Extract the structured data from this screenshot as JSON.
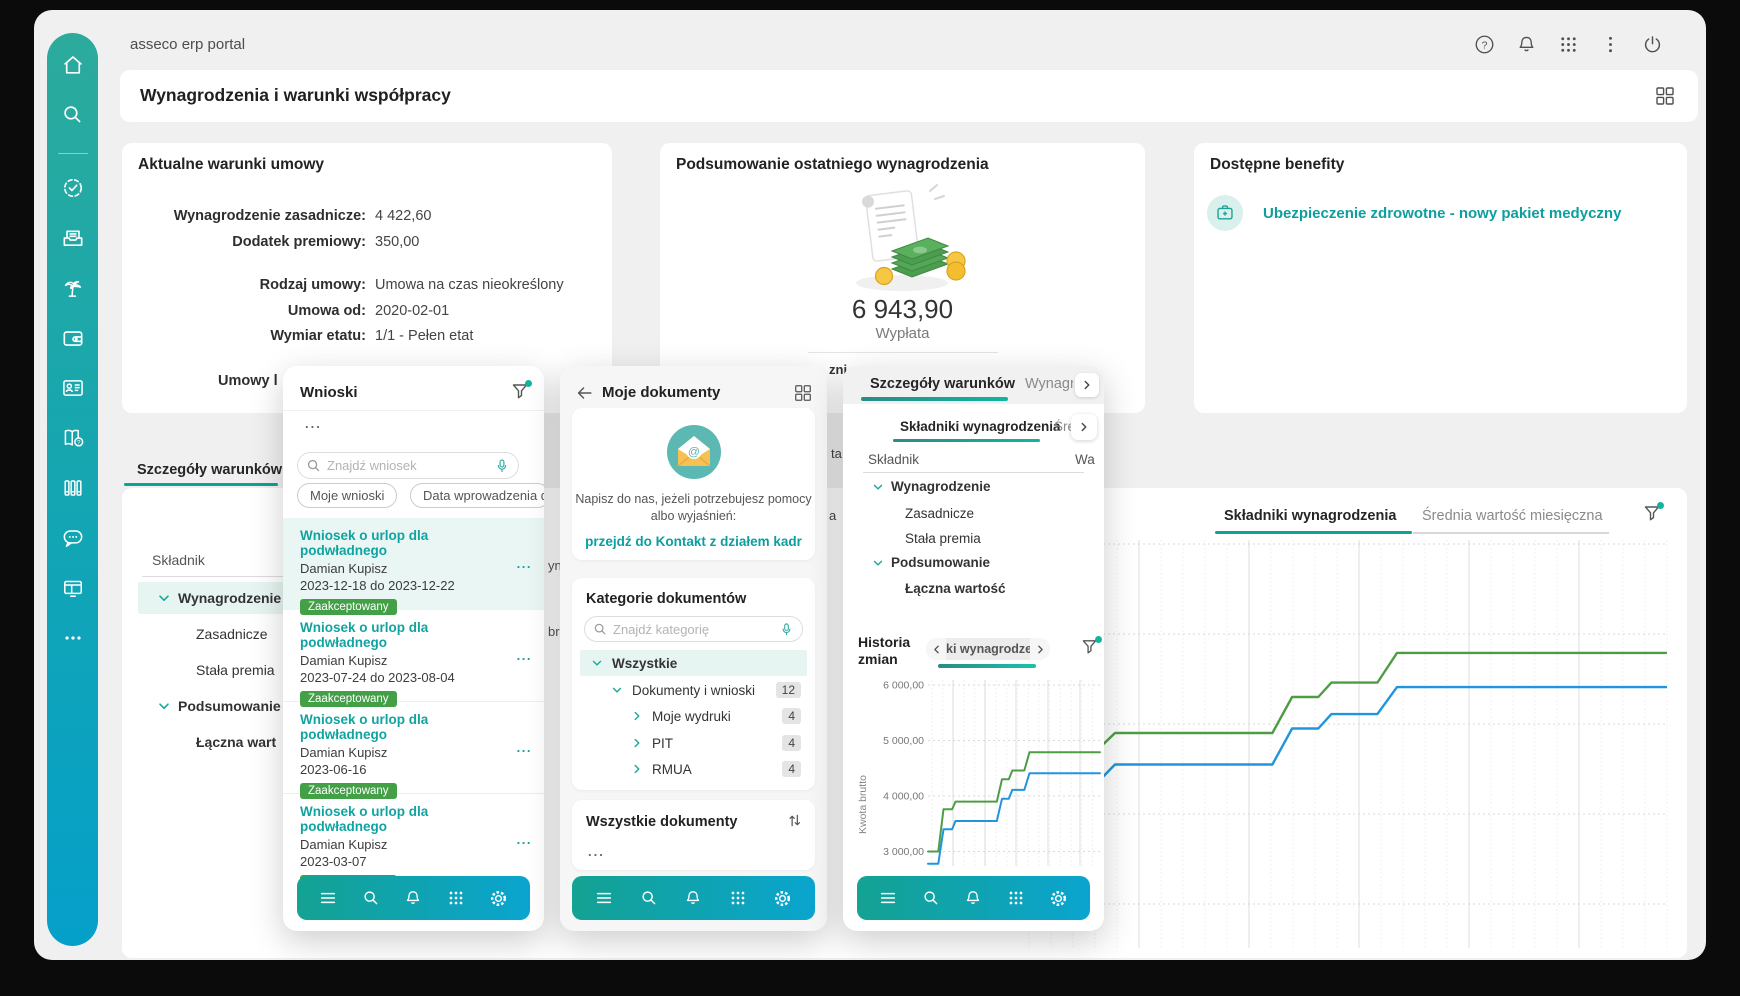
{
  "app": {
    "title": "asseco erp portal",
    "page_title": "Wynagrodzenia i warunki współpracy"
  },
  "topbar": {
    "icons": [
      "help-icon",
      "notifications-icon",
      "apps-grid-icon",
      "more-vertical-icon",
      "power-icon"
    ]
  },
  "sidebar": {
    "icons": [
      "home",
      "search",
      "tasks-check",
      "documents-inbox",
      "vacation-palm",
      "wallet",
      "employee-card",
      "guide-book",
      "library",
      "chat",
      "workstation",
      "more"
    ]
  },
  "contract_card": {
    "title": "Aktualne warunki umowy",
    "fields": [
      {
        "label": "Wynagrodzenie zasadnicze:",
        "value": "4 422,60"
      },
      {
        "label": "Dodatek premiowy:",
        "value": "350,00"
      },
      {
        "label": "Rodzaj umowy:",
        "value": "Umowa na czas nieokreślony"
      },
      {
        "label": "Umowa od:",
        "value": "2020-02-01"
      },
      {
        "label": "Wymiar etatu:",
        "value": "1/1 - Pełen etat"
      }
    ],
    "truncated_label": "Umowy l"
  },
  "salary_card": {
    "title": "Podsumowanie ostatniego wynagrodzenia",
    "amount": "6 943,90",
    "caption": "Wypłata"
  },
  "benefits_card": {
    "title": "Dostępne benefity",
    "link": "Ubezpieczenie zdrowotne - nowy pakiet medyczny"
  },
  "details_section": {
    "tab": "Szczegóły warunków",
    "header": "Składnik",
    "rows": [
      "Wynagrodzenie",
      "Zasadnicze",
      "Stała premia",
      "Podsumowanie",
      "Łączna wart"
    ]
  },
  "main_chart_tabs": {
    "active": "Składniki wynagrodzenia",
    "inactive": "Średnia wartość miesięczna"
  },
  "wnioski": {
    "title": "Wnioski",
    "ellipsis": "...",
    "kebab": "...",
    "search_placeholder": "Znajdź wniosek",
    "chips": [
      "Moje wnioski",
      "Data wprowadzenia d"
    ],
    "items": [
      {
        "title": "Wniosek o urlop dla podwładnego",
        "person": "Damian Kupisz",
        "dates": "2023-12-18 do 2023-12-22",
        "status": "Zaakceptowany"
      },
      {
        "title": "Wniosek o urlop dla podwładnego",
        "person": "Damian Kupisz",
        "dates": "2023-07-24 do 2023-08-04",
        "status": "Zaakceptowany"
      },
      {
        "title": "Wniosek o urlop dla podwładnego",
        "person": "Damian Kupisz",
        "dates": "2023-06-16",
        "status": "Zaakceptowany"
      },
      {
        "title": "Wniosek o urlop dla podwładnego",
        "person": "Damian Kupisz",
        "dates": "2023-03-07",
        "status": "Zaakceptowany"
      }
    ]
  },
  "dokumenty": {
    "title": "Moje dokumenty",
    "help": {
      "line1": "Napisz do nas, jeżeli potrzebujesz pomocy",
      "line2": "albo wyjaśnień:",
      "link": "przejdź do Kontakt z działem kadr"
    },
    "categories": {
      "title": "Kategorie dokumentów",
      "search_placeholder": "Znajdź kategorię",
      "items": [
        {
          "label": "Wszystkie",
          "count": ""
        },
        {
          "label": "Dokumenty i wnioski",
          "count": "12"
        },
        {
          "label": "Moje wydruki",
          "count": "4"
        },
        {
          "label": "PIT",
          "count": "4"
        },
        {
          "label": "RMUA",
          "count": "4"
        }
      ]
    },
    "all_docs": {
      "title": "Wszystkie dokumenty",
      "ellipsis": "..."
    }
  },
  "warunki": {
    "tab_active": "Szczegóły warunków",
    "tab_more": "Wynagrod",
    "inner_tab_active": "Składniki wynagrodzenia",
    "inner_tab_more": "Śre",
    "col1": "Składnik",
    "col2": "Wa",
    "rows": [
      "Wynagrodzenie",
      "Zasadnicze",
      "Stała premia",
      "Podsumowanie",
      "Łączna wartość"
    ],
    "history": {
      "title1": "Historia",
      "title2": "zmian",
      "selector": "ki wynagrodzeni"
    }
  },
  "fragments": {
    "f1": "zni",
    "f2": "ta",
    "f3": "a",
    "f4": "yn",
    "f5": "br"
  },
  "panel_toolbar": {
    "icons": [
      "menu",
      "search",
      "notifications",
      "apps-grid",
      "settings"
    ]
  },
  "chart_data": {
    "type": "line",
    "variant": "step",
    "title": "Historia zmian",
    "ylabel": "Kwota brutto",
    "yticks": [
      "6 000,00",
      "5 000,00",
      "4 000,00",
      "3 000,00"
    ],
    "ylim": [
      2600,
      6200
    ],
    "grid": "major vertical solid, minor dotted, horizontal dotted",
    "legend": "none (two unlabeled step series: green above blue)",
    "series": [
      {
        "name": "skladnik-zielony",
        "color": "#4e9d45",
        "points": [
          [
            0,
            3000
          ],
          [
            0.06,
            3000
          ],
          [
            0.09,
            3760
          ],
          [
            0.14,
            3760
          ],
          [
            0.16,
            3900
          ],
          [
            0.4,
            3900
          ],
          [
            0.43,
            4300
          ],
          [
            0.47,
            4300
          ],
          [
            0.49,
            4460
          ],
          [
            0.56,
            4460
          ],
          [
            0.59,
            4790
          ],
          [
            1,
            4790
          ]
        ]
      },
      {
        "name": "skladnik-niebieski",
        "color": "#2095dc",
        "points": [
          [
            0,
            2780
          ],
          [
            0.06,
            2780
          ],
          [
            0.09,
            3400
          ],
          [
            0.14,
            3400
          ],
          [
            0.16,
            3550
          ],
          [
            0.4,
            3550
          ],
          [
            0.43,
            3950
          ],
          [
            0.47,
            3950
          ],
          [
            0.49,
            4110
          ],
          [
            0.56,
            4110
          ],
          [
            0.59,
            4410
          ],
          [
            1,
            4410
          ]
        ]
      }
    ],
    "charts": [
      {
        "id": "big",
        "context": "Składniki wynagrodzenia — main page chart, y-axis hidden behind panel"
      },
      {
        "id": "mini",
        "context": "Historia zmian — panel chart with y ticks 3 000,00 – 6 000,00"
      }
    ]
  }
}
